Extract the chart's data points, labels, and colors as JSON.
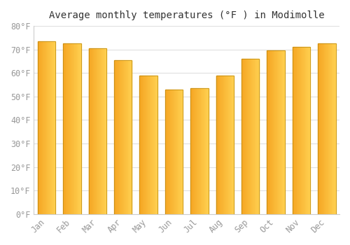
{
  "title": "Average monthly temperatures (°F ) in Modimolle",
  "months": [
    "Jan",
    "Feb",
    "Mar",
    "Apr",
    "May",
    "Jun",
    "Jul",
    "Aug",
    "Sep",
    "Oct",
    "Nov",
    "Dec"
  ],
  "values": [
    73.5,
    72.5,
    70.5,
    65.5,
    59.0,
    53.0,
    53.5,
    59.0,
    66.0,
    69.5,
    71.0,
    72.5
  ],
  "bar_color_left": "#F5A623",
  "bar_color_right": "#FFD050",
  "bar_edge_color": "#B8860B",
  "ylim": [
    0,
    80
  ],
  "yticks": [
    0,
    10,
    20,
    30,
    40,
    50,
    60,
    70,
    80
  ],
  "background_color": "#FFFFFF",
  "grid_color": "#E0E0E0",
  "title_fontsize": 10,
  "tick_fontsize": 8.5,
  "tick_color": "#999999"
}
